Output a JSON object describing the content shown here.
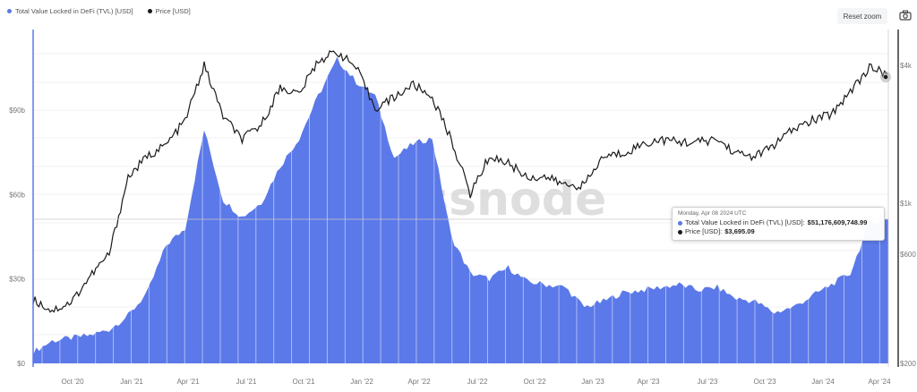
{
  "legend": {
    "items": [
      {
        "label": "Total Value Locked in DeFi (TVL) [USD]",
        "color": "#5b79e8"
      },
      {
        "label": "Price [USD]",
        "color": "#1a1a1a"
      }
    ]
  },
  "toolbar": {
    "reset_zoom_label": "Reset zoom",
    "camera_icon": "camera-icon"
  },
  "watermark": "glassnode",
  "tooltip": {
    "date": "Monday, Apr 08 2024 UTC",
    "tvl_label": "Total Value Locked in DeFi (TVL) [USD]: ",
    "tvl_value": "$51,176,609,748.99",
    "price_label": "Price [USD]: ",
    "price_value": "$3,695.09"
  },
  "colors": {
    "tvl": "#5b79e8",
    "price": "#1a1a1a",
    "grid": "#eeeeee",
    "left_axis_line": "#5b79e8",
    "right_axis_line": "#333333"
  },
  "chart_data": {
    "type": "area",
    "title": "",
    "xlabel": "",
    "ylabel_left": "Total Value Locked in DeFi (TVL) [USD]",
    "ylabel_right": "Price [USD]",
    "left_axis": {
      "ticks": [
        "$0",
        "$30b",
        "$60b",
        "$90b"
      ],
      "values": [
        0,
        30,
        60,
        90
      ],
      "unit": "billion USD",
      "ylim": [
        0,
        115
      ]
    },
    "right_axis": {
      "ticks": [
        "$200",
        "$600",
        "$1k",
        "$4k"
      ],
      "values": [
        200,
        600,
        1000,
        4000
      ],
      "scale": "log"
    },
    "x_ticks": [
      "Oct '20",
      "Jan '21",
      "Apr '21",
      "Jul '21",
      "Oct '21",
      "Jan '22",
      "Apr '22",
      "Jul '22",
      "Oct '22",
      "Jan '23",
      "Apr '23",
      "Jul '23",
      "Oct '23",
      "Jan '24",
      "Apr '24"
    ],
    "x": [
      "2020-08",
      "2020-09",
      "2020-10",
      "2020-11",
      "2020-12",
      "2021-01",
      "2021-02",
      "2021-03",
      "2021-04",
      "2021-05",
      "2021-05b",
      "2021-06",
      "2021-07",
      "2021-08",
      "2021-09",
      "2021-10",
      "2021-11",
      "2021-12",
      "2022-01",
      "2022-02",
      "2022-03",
      "2022-04",
      "2022-05",
      "2022-06",
      "2022-07",
      "2022-08",
      "2022-09",
      "2022-10",
      "2022-11",
      "2022-12",
      "2023-01",
      "2023-02",
      "2023-03",
      "2023-04",
      "2023-05",
      "2023-06",
      "2023-07",
      "2023-08",
      "2023-09",
      "2023-10",
      "2023-11",
      "2023-12",
      "2024-01",
      "2024-02",
      "2024-03",
      "2024-04-08"
    ],
    "series": [
      {
        "name": "Total Value Locked in DeFi (TVL) [USD]",
        "axis": "left",
        "unit": "billion USD",
        "values": [
          4,
          8,
          9,
          10,
          12,
          17,
          25,
          42,
          48,
          83,
          58,
          52,
          57,
          70,
          80,
          95,
          108,
          100,
          95,
          73,
          78,
          80,
          45,
          32,
          30,
          34,
          29,
          28,
          27,
          20,
          22,
          25,
          26,
          27,
          28,
          26,
          27,
          23,
          22,
          18,
          20,
          24,
          28,
          32,
          50,
          51.18
        ]
      },
      {
        "name": "Price [USD]",
        "axis": "right",
        "unit": "USD",
        "values": [
          380,
          340,
          370,
          480,
          600,
          1300,
          1600,
          1800,
          2300,
          4000,
          2400,
          1900,
          2200,
          3200,
          3000,
          4200,
          4600,
          3900,
          2600,
          2900,
          3300,
          2900,
          1900,
          1100,
          1600,
          1500,
          1300,
          1300,
          1200,
          1200,
          1600,
          1650,
          1800,
          1900,
          1850,
          1850,
          1900,
          1650,
          1600,
          1800,
          2100,
          2300,
          2450,
          3100,
          3900,
          3695.09
        ]
      }
    ],
    "legend_position": "top-left",
    "grid": true,
    "highlight": {
      "date": "2024-04-08",
      "tvl": 51176609748.99,
      "price": 3695.09
    }
  }
}
